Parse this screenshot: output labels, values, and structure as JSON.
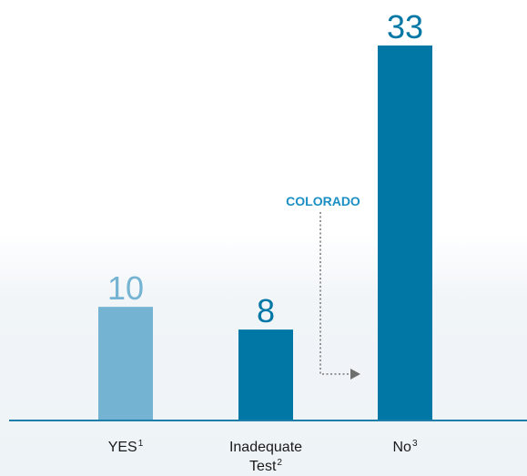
{
  "chart_data": {
    "type": "bar",
    "categories": [
      "YES",
      "Inadequate Test",
      "No"
    ],
    "category_labels": [
      {
        "lines": [
          {
            "text": "YES",
            "sup": "1"
          }
        ]
      },
      {
        "lines": [
          {
            "text": "Inadequate",
            "sup": ""
          },
          {
            "text": "Test",
            "sup": "2"
          }
        ]
      },
      {
        "lines": [
          {
            "text": "No",
            "sup": "3"
          }
        ]
      }
    ],
    "values": [
      10,
      8,
      33
    ],
    "value_labels": [
      "10",
      "8",
      "33"
    ],
    "colors": [
      "#74b3d2",
      "#0077a5",
      "#0077a5"
    ],
    "value_label_colors": [
      "#74b3d2",
      "#0077a5",
      "#0077a5"
    ],
    "ylim": [
      0,
      33
    ],
    "grid": false,
    "annotation": {
      "text": "COLORADO",
      "color": "#1b8fc4",
      "arrow_color": "#8a8a8a",
      "arrow_head_color": "#6e6e6e",
      "points_to": "No"
    },
    "axis_color": "#1c7ea9"
  }
}
